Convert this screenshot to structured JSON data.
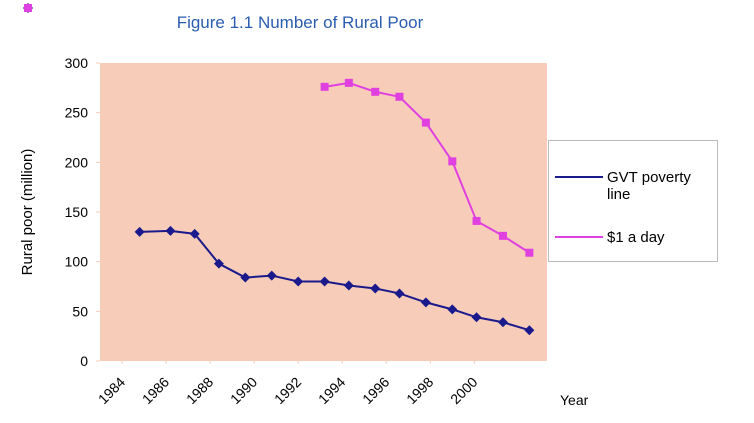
{
  "chart_data": {
    "type": "line",
    "title": "Figure 1.1 Number of Rural Poor",
    "y_label": "Rural poor (million)",
    "x_label": "Year",
    "xlim": [
      1983.0,
      2003.3
    ],
    "xticks": [
      1984,
      1986,
      1988,
      1990,
      1992,
      1994,
      1996,
      1998,
      2000
    ],
    "ylim": [
      0,
      300
    ],
    "yticks": [
      0,
      50,
      100,
      150,
      200,
      250,
      300
    ],
    "grid": false,
    "legend": "right",
    "series": [
      {
        "name": "GVT poverty line",
        "color": "#1a1a8c",
        "marker": "diamond",
        "x": [
          1984.8,
          1986.2,
          1987.3,
          1988.4,
          1989.6,
          1990.8,
          1992.0,
          1993.2,
          1994.3,
          1995.5,
          1996.6,
          1997.8,
          1999.0,
          2000.1,
          2001.3,
          2002.5
        ],
        "values": [
          130,
          131,
          128,
          98,
          84,
          86,
          80,
          80,
          76,
          73,
          68,
          59,
          52,
          44,
          39,
          31
        ]
      },
      {
        "name": "$1 a day",
        "color": "#e040e0",
        "marker": "square",
        "x": [
          1993.2,
          1994.3,
          1995.5,
          1996.6,
          1997.8,
          1999.0,
          2000.1,
          2001.3,
          2002.5
        ],
        "values": [
          276,
          280,
          271,
          266,
          240,
          201,
          141,
          126,
          109
        ]
      }
    ]
  }
}
